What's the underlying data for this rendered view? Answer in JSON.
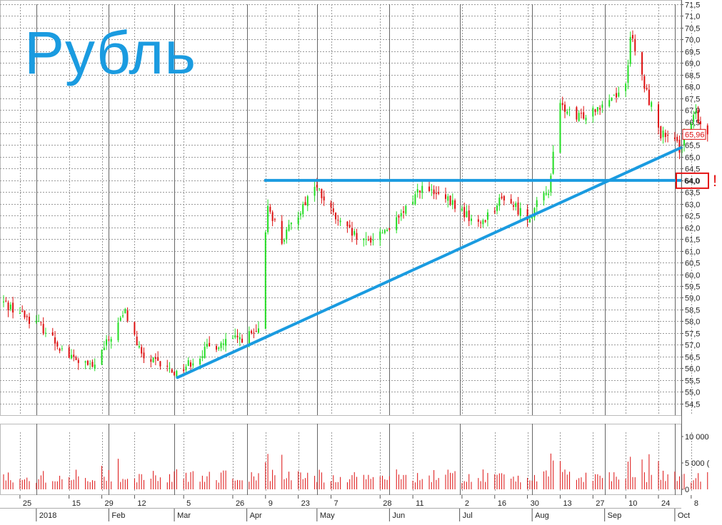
{
  "chart_data": {
    "type": "candlestick",
    "title": "Рубль",
    "colors": {
      "up": "#22dd22",
      "down": "#dd1111",
      "trend": "#1a9be0",
      "grid": "#999999",
      "marker": "#e41111",
      "volume": "#dd1111"
    },
    "ylim": [
      54.0,
      71.5
    ],
    "y_ticks": [
      "71,5",
      "71,0",
      "70,5",
      "70,0",
      "69,5",
      "69,0",
      "68,5",
      "68,0",
      "67,5",
      "67,0",
      "66,5",
      "66,0",
      "65,5",
      "65,0",
      "64,5",
      "64,0",
      "63,5",
      "63,0",
      "62,5",
      "62,0",
      "61,5",
      "61,0",
      "60,5",
      "60,0",
      "59,5",
      "59,0",
      "58,5",
      "58,0",
      "57,5",
      "57,0",
      "56,5",
      "56,0",
      "55,5",
      "55,0",
      "54,5"
    ],
    "last_price_label": "65,96",
    "last_price": 65.96,
    "resistance_label": "64,0",
    "resistance_level": 64.0,
    "alert_mark": "!",
    "trendline": {
      "start": {
        "date": "2018-03-02",
        "value": 55.6
      },
      "end": {
        "date": "2018-10-10",
        "value": 65.4
      }
    },
    "resistance_line_start_date": "2018-04-06",
    "volume_ticks": [
      "10 000",
      "5 000 (",
      "0"
    ],
    "volume_max": 10000,
    "x_day_ticks": [
      "25",
      "15",
      "29",
      "12",
      "5",
      "26",
      "9",
      "23",
      "7",
      "28",
      "11",
      "2",
      "16",
      "30",
      "13",
      "27",
      "10",
      "24",
      "8"
    ],
    "x_month_ticks": [
      "2018",
      "Feb",
      "Mar",
      "Apr",
      "May",
      "Jun",
      "Jul",
      "Aug",
      "Sep",
      "Oct"
    ],
    "start_date": "2017-12-18",
    "anchors": [
      {
        "date": "2017-12-18",
        "value": 58.8
      },
      {
        "date": "2018-01-03",
        "value": 57.8
      },
      {
        "date": "2018-01-15",
        "value": 56.5
      },
      {
        "date": "2018-01-25",
        "value": 56.0
      },
      {
        "date": "2018-02-08",
        "value": 58.4
      },
      {
        "date": "2018-02-15",
        "value": 56.5
      },
      {
        "date": "2018-03-02",
        "value": 55.8
      },
      {
        "date": "2018-03-16",
        "value": 56.9
      },
      {
        "date": "2018-04-06",
        "value": 57.5
      },
      {
        "date": "2018-04-10",
        "value": 63.0
      },
      {
        "date": "2018-04-16",
        "value": 61.4
      },
      {
        "date": "2018-04-30",
        "value": 63.8
      },
      {
        "date": "2018-05-10",
        "value": 62.2
      },
      {
        "date": "2018-05-21",
        "value": 61.3
      },
      {
        "date": "2018-06-05",
        "value": 62.3
      },
      {
        "date": "2018-06-14",
        "value": 63.7
      },
      {
        "date": "2018-06-28",
        "value": 63.0
      },
      {
        "date": "2018-07-09",
        "value": 62.1
      },
      {
        "date": "2018-07-20",
        "value": 63.3
      },
      {
        "date": "2018-07-30",
        "value": 62.4
      },
      {
        "date": "2018-08-08",
        "value": 63.6
      },
      {
        "date": "2018-08-13",
        "value": 67.2
      },
      {
        "date": "2018-08-20",
        "value": 66.6
      },
      {
        "date": "2018-09-03",
        "value": 67.5
      },
      {
        "date": "2018-09-10",
        "value": 68.0
      },
      {
        "date": "2018-09-12",
        "value": 70.2
      },
      {
        "date": "2018-09-18",
        "value": 68.0
      },
      {
        "date": "2018-09-25",
        "value": 66.0
      },
      {
        "date": "2018-10-03",
        "value": 65.4
      },
      {
        "date": "2018-10-10",
        "value": 66.8
      },
      {
        "date": "2018-10-15",
        "value": 65.96
      }
    ]
  }
}
